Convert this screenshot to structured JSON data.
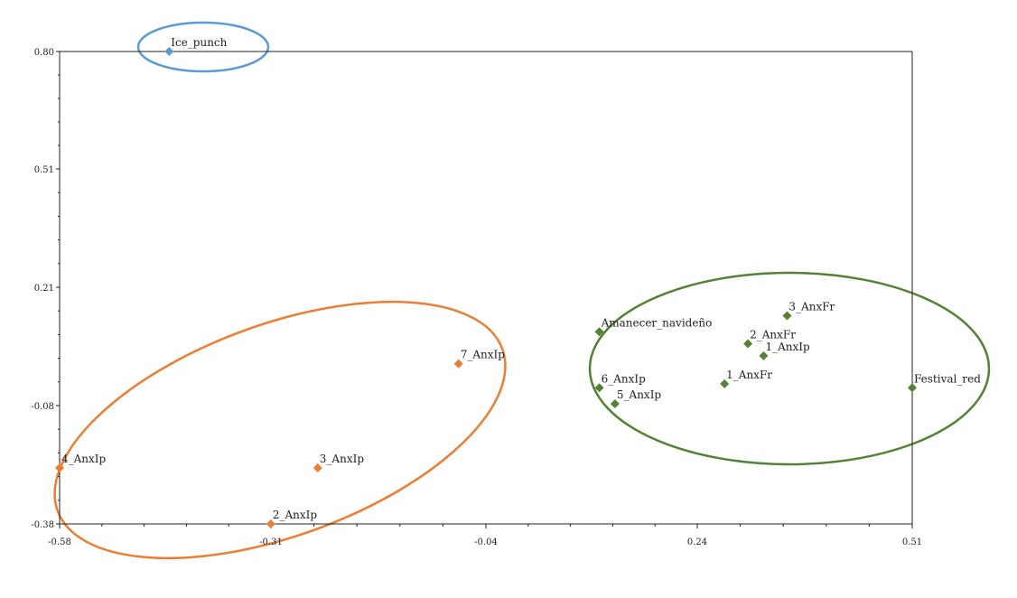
{
  "chart_data": {
    "type": "scatter",
    "title": "",
    "xlabel": "",
    "ylabel": "",
    "xlim": [
      -0.58,
      0.51
    ],
    "ylim": [
      -0.38,
      0.8
    ],
    "x_ticks": [
      "-0.58",
      "-0.31",
      "-0.04",
      "0.24",
      "0.51"
    ],
    "y_ticks": [
      "0.80",
      "0.51",
      "0.21",
      "-0.08",
      "-0.38"
    ],
    "grid": false,
    "legend": "none",
    "points": [
      {
        "label": "Ice_punch",
        "x": -0.44,
        "y": 0.8,
        "group": "blue",
        "color": "#5B9BD5"
      },
      {
        "label": "4_AnxIp",
        "x": -0.58,
        "y": -0.24,
        "group": "orange",
        "color": "#ED7D31"
      },
      {
        "label": "2_AnxIp",
        "x": -0.31,
        "y": -0.38,
        "group": "orange",
        "color": "#ED7D31"
      },
      {
        "label": "3_AnxIp",
        "x": -0.25,
        "y": -0.24,
        "group": "orange",
        "color": "#ED7D31"
      },
      {
        "label": "7_AnxIp",
        "x": -0.07,
        "y": 0.02,
        "group": "orange",
        "color": "#ED7D31"
      },
      {
        "label": "Amanecer_navideño",
        "x": 0.11,
        "y": 0.1,
        "group": "green",
        "color": "#548235"
      },
      {
        "label": "3_AnxFr",
        "x": 0.35,
        "y": 0.14,
        "group": "green",
        "color": "#548235"
      },
      {
        "label": "2_AnxFr",
        "x": 0.3,
        "y": 0.07,
        "group": "green",
        "color": "#548235"
      },
      {
        "label": "1_AnxIp",
        "x": 0.32,
        "y": 0.04,
        "group": "green",
        "color": "#548235"
      },
      {
        "label": "1_AnxFr",
        "x": 0.27,
        "y": -0.03,
        "group": "green",
        "color": "#548235"
      },
      {
        "label": "6_AnxIp",
        "x": 0.11,
        "y": -0.04,
        "group": "green",
        "color": "#548235"
      },
      {
        "label": "5_AnxIp",
        "x": 0.13,
        "y": -0.08,
        "group": "green",
        "color": "#548235"
      },
      {
        "label": "Festival_red",
        "x": 0.51,
        "y": -0.04,
        "group": "green",
        "color": "#548235"
      }
    ],
    "group_colors": {
      "blue": "#5B9BD5",
      "orange": "#ED7D31",
      "green": "#548235"
    }
  }
}
